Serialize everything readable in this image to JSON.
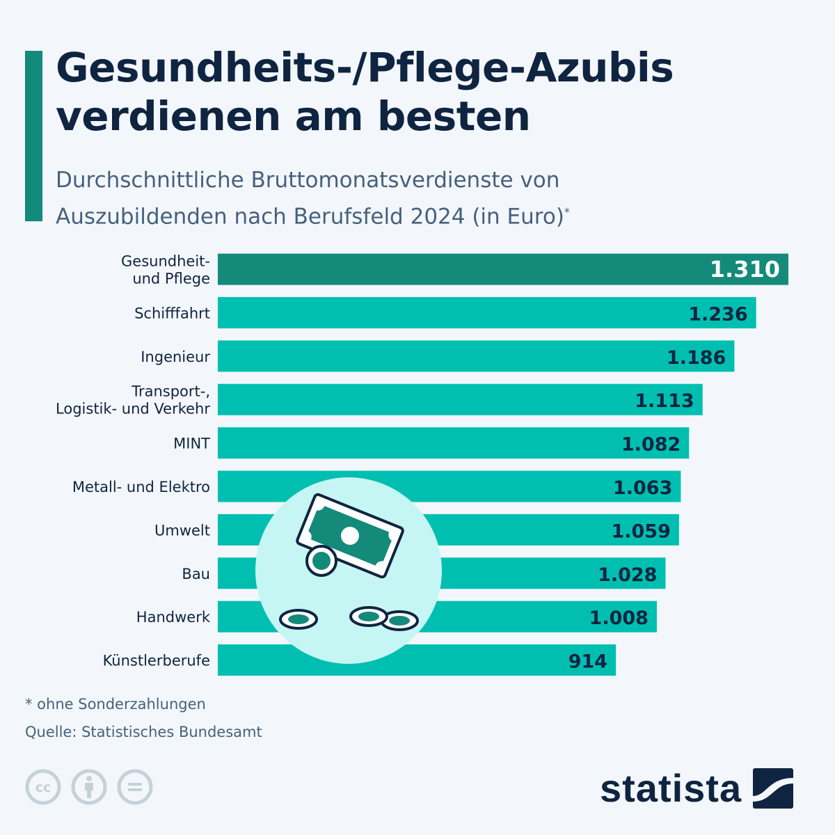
{
  "title_line1": "Gesundheits-/Pflege-Azubis",
  "title_line2": "verdienen am besten",
  "subtitle_line1": "Durchschnittliche Bruttomonatsverdienste von",
  "subtitle_line2": "Auszubildenden nach Berufsfeld 2024 (in Euro)",
  "subtitle_mark": "*",
  "footnote": "* ohne Sonderzahlungen",
  "source": "Quelle: Statistisches Bundesamt",
  "logo": "statista",
  "colors": {
    "highlight_bar": "#138a7a",
    "bar": "#00bfb0",
    "label_dark": "#0f2440",
    "label_light": "#ffffff",
    "illustration_bg": "#c6f6f3"
  },
  "chart_data": {
    "type": "bar",
    "orientation": "horizontal",
    "title": "Gesundheits-/Pflege-Azubis verdienen am besten",
    "subtitle": "Durchschnittliche Bruttomonatsverdienste von Auszubildenden nach Berufsfeld 2024 (in Euro)*",
    "categories": [
      [
        "Gesundheit-",
        "und Pflege"
      ],
      [
        "Schifffahrt"
      ],
      [
        "Ingenieur"
      ],
      [
        "Transport-,",
        "Logistik- und Verkehr"
      ],
      [
        "MINT"
      ],
      [
        "Metall- und Elektro"
      ],
      [
        "Umwelt"
      ],
      [
        "Bau"
      ],
      [
        "Handwerk"
      ],
      [
        "Künstlerberufe"
      ]
    ],
    "values": [
      1310,
      1236,
      1186,
      1113,
      1082,
      1063,
      1059,
      1028,
      1008,
      914
    ],
    "value_labels": [
      "1.310",
      "1.236",
      "1.186",
      "1.113",
      "1.082",
      "1.063",
      "1.059",
      "1.028",
      "1.008",
      "914"
    ],
    "highlight_index": 0,
    "xlim": [
      0,
      1310
    ],
    "xlabel": "",
    "ylabel": "",
    "grid": false,
    "legend": "none"
  }
}
